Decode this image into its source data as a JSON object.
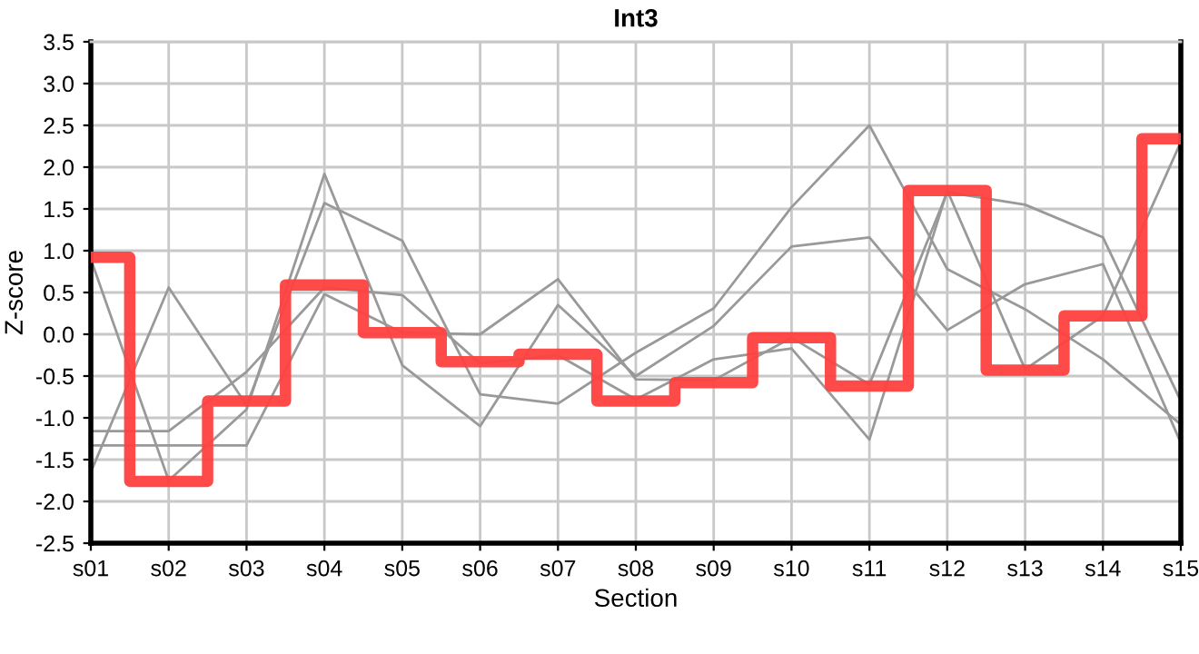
{
  "chart_data": {
    "type": "line",
    "title": "Int3",
    "xlabel": "Section",
    "ylabel": "Z-score",
    "categories": [
      "s01",
      "s02",
      "s03",
      "s04",
      "s05",
      "s06",
      "s07",
      "s08",
      "s09",
      "s10",
      "s11",
      "s12",
      "s13",
      "s14",
      "s15"
    ],
    "series": [
      {
        "color": "#999999",
        "values": [
          0.9,
          -1.75,
          -0.9,
          1.92,
          -0.37,
          -1.1,
          0.35,
          -0.5,
          0.1,
          1.05,
          1.16,
          0.05,
          0.6,
          0.84,
          -1.3
        ]
      },
      {
        "color": "#999999",
        "values": [
          -1.65,
          0.56,
          -0.85,
          1.57,
          1.12,
          -0.72,
          -0.83,
          -0.22,
          0.31,
          1.52,
          2.5,
          0.78,
          0.3,
          -0.3,
          -1.08
        ]
      },
      {
        "color": "#999999",
        "values": [
          -1.16,
          -1.16,
          -0.45,
          0.56,
          0.47,
          -0.35,
          -0.25,
          -0.78,
          -0.3,
          -0.17,
          -1.26,
          1.72,
          -0.42,
          0.22,
          2.3
        ]
      },
      {
        "color": "#999999",
        "values": [
          -1.33,
          -1.33,
          -1.33,
          0.48,
          0.02,
          0.0,
          0.66,
          -0.54,
          -0.55,
          -0.04,
          -0.6,
          1.7,
          1.55,
          1.16,
          -0.8
        ]
      },
      {
        "type": "step",
        "color": "#ff4040",
        "values": [
          0.92,
          -1.76,
          -0.8,
          0.59,
          0.02,
          -0.33,
          -0.24,
          -0.8,
          -0.58,
          -0.04,
          -0.62,
          1.72,
          -0.43,
          0.22,
          2.34
        ]
      }
    ],
    "ylim": [
      -2.5,
      3.5
    ],
    "yticks": [
      {
        "value": -2.5,
        "label": "-2.5"
      },
      {
        "value": -2.0,
        "label": "-2.0"
      },
      {
        "value": -1.5,
        "label": "-1.5"
      },
      {
        "value": -1.0,
        "label": "-1.0"
      },
      {
        "value": -0.5,
        "label": "-0.5"
      },
      {
        "value": 0.0,
        "label": "0.0"
      },
      {
        "value": 0.5,
        "label": "0.5"
      },
      {
        "value": 1.0,
        "label": "1.0"
      },
      {
        "value": 1.5,
        "label": "1.5"
      },
      {
        "value": 2.0,
        "label": "2.0"
      },
      {
        "value": 2.5,
        "label": "2.5"
      },
      {
        "value": 3.0,
        "label": "3.0"
      },
      {
        "value": 3.5,
        "label": "3.5"
      }
    ],
    "grid": true
  }
}
